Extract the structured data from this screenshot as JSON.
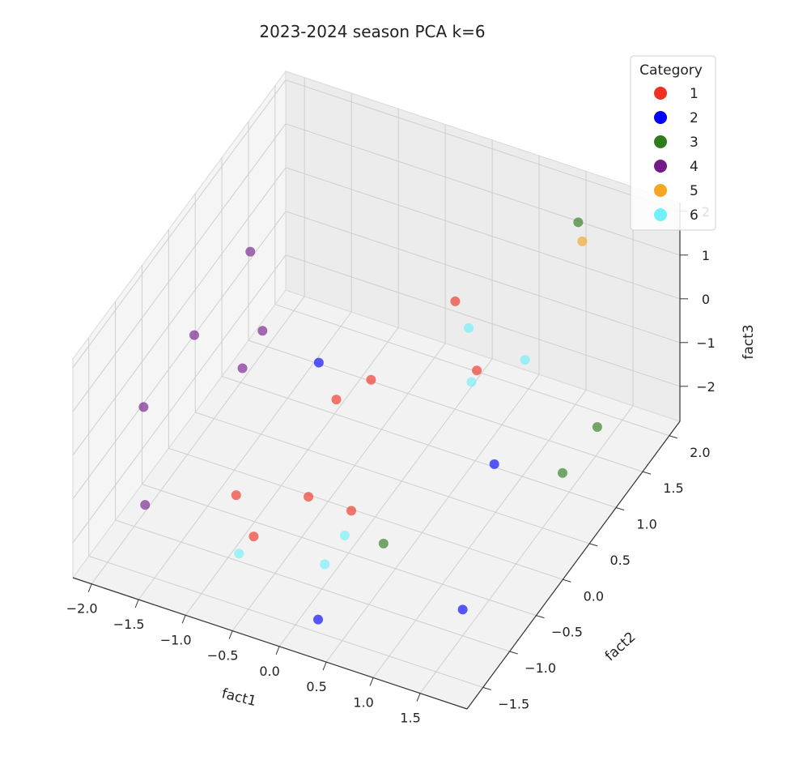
{
  "chart_data": {
    "type": "scatter",
    "title": "2023-2024 season PCA k=6",
    "xlabel": "fact1",
    "ylabel": "fact2",
    "zlabel": "fact3",
    "xticks": [
      "−2.0",
      "−1.5",
      "−1.0",
      "−0.5",
      "0.0",
      "0.5",
      "1.0",
      "1.5"
    ],
    "yticks": [
      "−1.5",
      "−1.0",
      "−0.5",
      "0.0",
      "0.5",
      "1.0",
      "1.5",
      "2.0"
    ],
    "zticks": [
      "2",
      "1",
      "0",
      "−1",
      "−2"
    ],
    "legend": {
      "title": "Category",
      "position": "top-right",
      "entries": [
        {
          "label": "1",
          "color": "#ee3124"
        },
        {
          "label": "2",
          "color": "#0000ff"
        },
        {
          "label": "3",
          "color": "#2e7d1a"
        },
        {
          "label": "4",
          "color": "#741b8a"
        },
        {
          "label": "5",
          "color": "#f5a623"
        },
        {
          "label": "6",
          "color": "#70f0f8"
        }
      ]
    },
    "series": [
      {
        "name": "1",
        "points": [
          [
            0.4,
            0.8,
            1.1
          ],
          [
            -0.3,
            -0.2,
            0.0
          ],
          [
            -0.1,
            0.1,
            0.1
          ],
          [
            0.8,
            0.5,
            0.3
          ],
          [
            -0.8,
            -1.2,
            -0.9
          ],
          [
            -0.2,
            -0.9,
            -1.0
          ],
          [
            -0.5,
            -1.4,
            -1.3
          ],
          [
            0.2,
            -0.8,
            -1.2
          ]
        ]
      },
      {
        "name": "2",
        "points": [
          [
            -0.6,
            0.0,
            0.3
          ],
          [
            1.1,
            0.3,
            -1.3
          ],
          [
            0.3,
            -1.6,
            -2.3
          ],
          [
            1.5,
            -1.0,
            -2.2
          ]
        ]
      },
      {
        "name": "3",
        "points": [
          [
            1.2,
            1.7,
            2.0
          ],
          [
            1.8,
            1.0,
            -1.1
          ],
          [
            1.6,
            0.7,
            -1.8
          ],
          [
            0.6,
            -0.9,
            -1.5
          ]
        ]
      },
      {
        "name": "4",
        "points": [
          [
            -1.5,
            0.3,
            1.7
          ],
          [
            -1.7,
            -0.4,
            0.8
          ],
          [
            -1.2,
            0.0,
            0.6
          ],
          [
            -1.3,
            -0.2,
            0.0
          ],
          [
            -1.9,
            -1.0,
            0.0
          ],
          [
            -1.6,
            -1.5,
            -1.2
          ]
        ]
      },
      {
        "name": "5",
        "points": [
          [
            1.3,
            1.6,
            1.8
          ]
        ]
      },
      {
        "name": "6",
        "points": [
          [
            0.6,
            0.7,
            0.8
          ],
          [
            0.8,
            0.4,
            0.2
          ],
          [
            1.2,
            0.7,
            0.5
          ],
          [
            -0.6,
            -1.5,
            -1.6
          ],
          [
            0.2,
            -1.3,
            -1.6
          ],
          [
            0.3,
            -1.1,
            -1.2
          ]
        ]
      }
    ]
  }
}
